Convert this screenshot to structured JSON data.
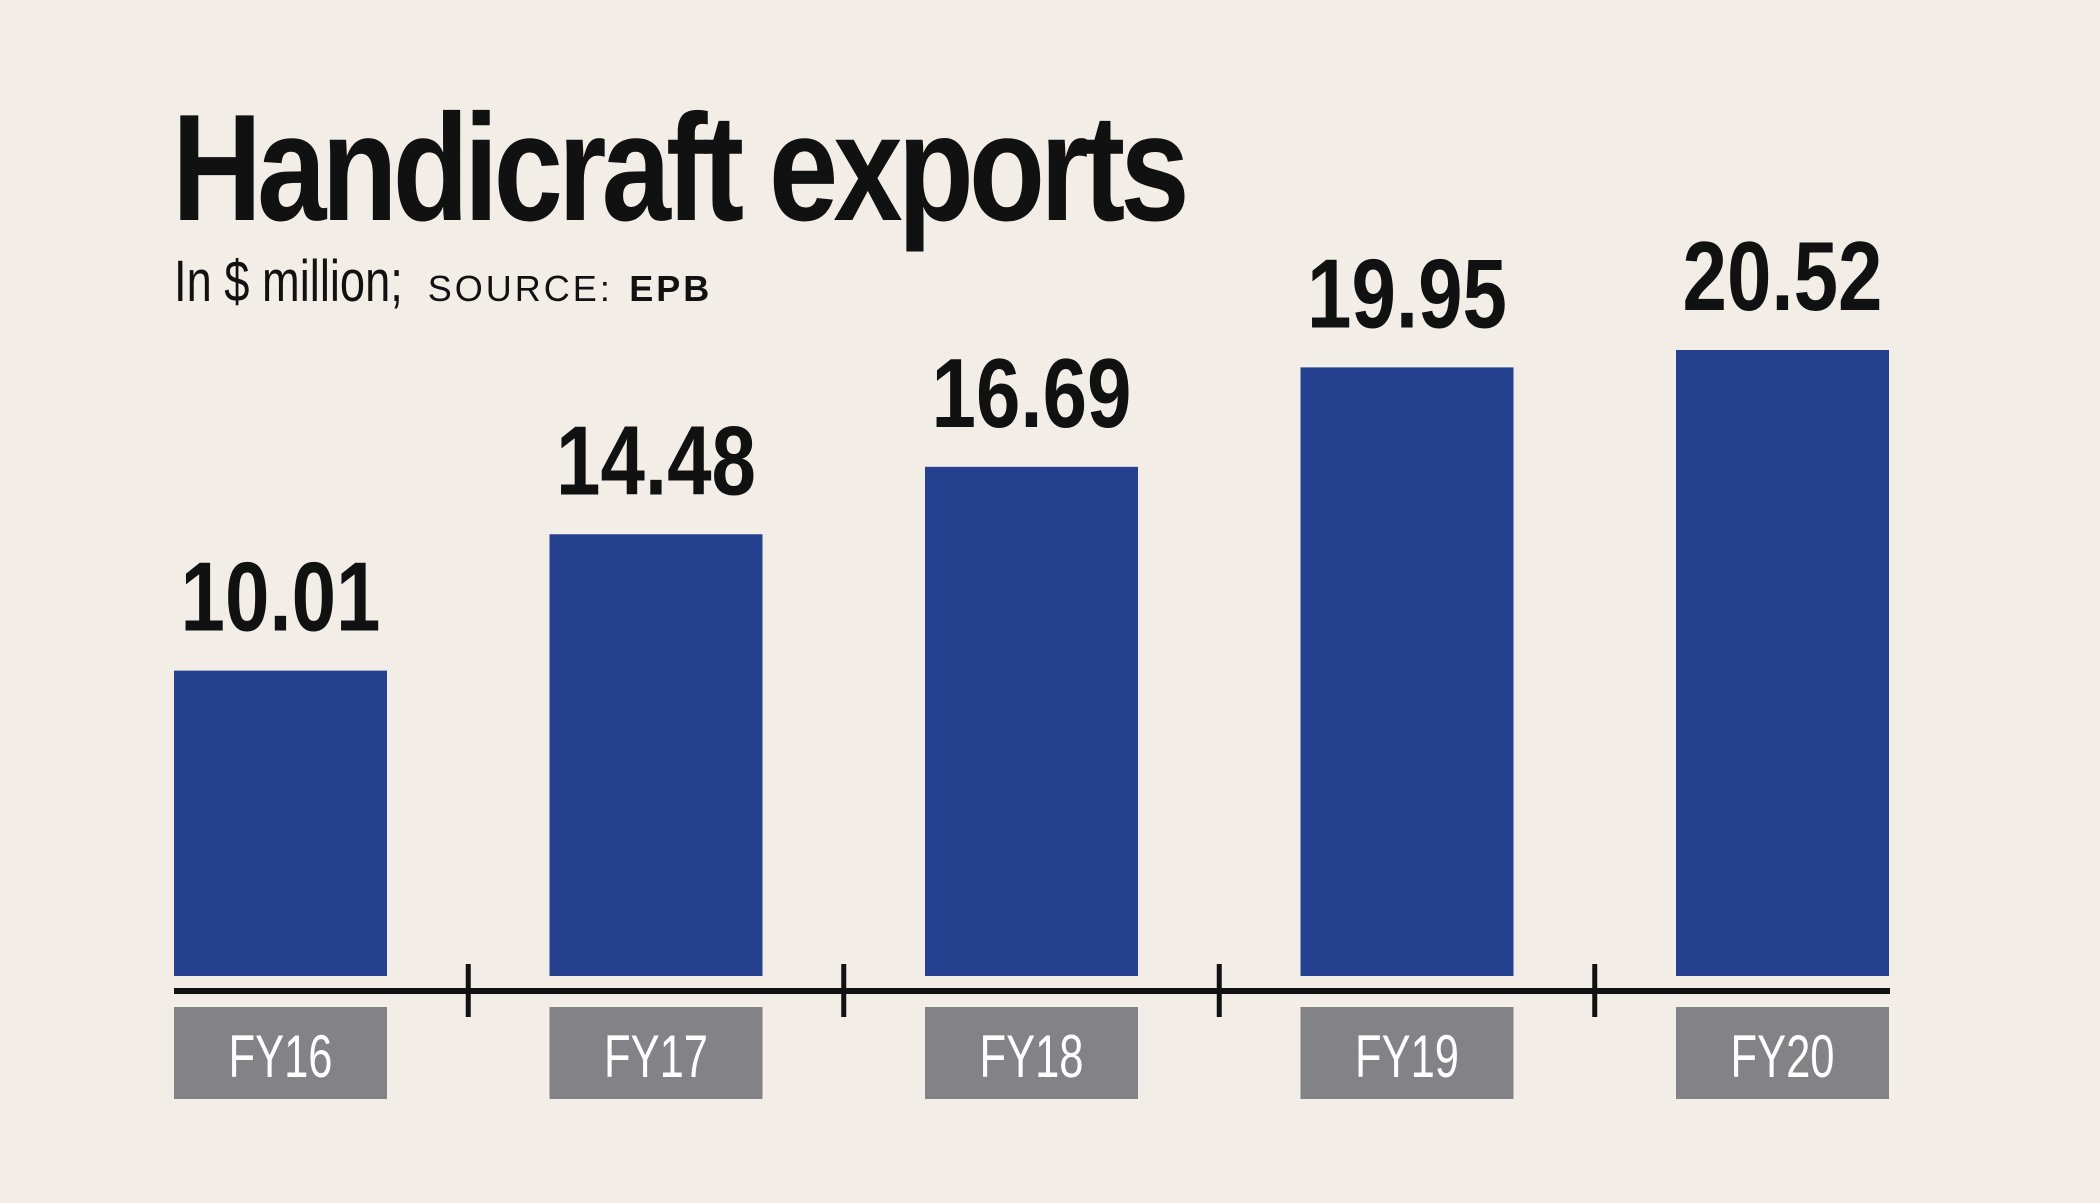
{
  "title": "Handicraft exports",
  "subtitle": {
    "unit": "In $ million;",
    "source_label": "SOURCE:",
    "source_value": "EPB"
  },
  "colors": {
    "background": "#f2eee7",
    "bar": "#24408f",
    "category_box": "#828287",
    "axis": "#111111",
    "text": "#111111"
  },
  "chart_data": {
    "type": "bar",
    "title": "Handicraft exports",
    "subtitle": "In $ million; SOURCE: EPB",
    "categories": [
      "FY16",
      "FY17",
      "FY18",
      "FY19",
      "FY20"
    ],
    "values": [
      10.01,
      14.48,
      16.69,
      19.95,
      20.52
    ],
    "value_labels": [
      "10.01",
      "14.48",
      "16.69",
      "19.95",
      "20.52"
    ],
    "xlabel": "",
    "ylabel": "",
    "ylim": [
      0,
      20.52
    ],
    "grid": false,
    "legend": "none"
  }
}
